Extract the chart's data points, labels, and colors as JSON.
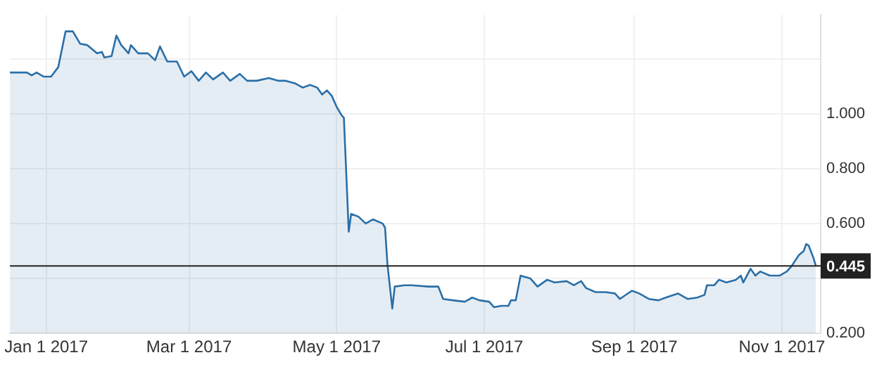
{
  "chart_data": {
    "type": "area",
    "x": [
      "2016-12-17",
      "2016-12-24",
      "2016-12-26",
      "2016-12-28",
      "2016-12-31",
      "2017-01-03",
      "2017-01-06",
      "2017-01-09",
      "2017-01-12",
      "2017-01-15",
      "2017-01-18",
      "2017-01-22",
      "2017-01-24",
      "2017-01-25",
      "2017-01-28",
      "2017-01-30",
      "2017-02-01",
      "2017-02-04",
      "2017-02-05",
      "2017-02-08",
      "2017-02-12",
      "2017-02-15",
      "2017-02-17",
      "2017-02-20",
      "2017-02-24",
      "2017-02-27",
      "2017-03-02",
      "2017-03-05",
      "2017-03-08",
      "2017-03-11",
      "2017-03-15",
      "2017-03-18",
      "2017-03-22",
      "2017-03-25",
      "2017-03-29",
      "2017-04-03",
      "2017-04-07",
      "2017-04-10",
      "2017-04-14",
      "2017-04-17",
      "2017-04-20",
      "2017-04-23",
      "2017-04-25",
      "2017-04-27",
      "2017-04-29",
      "2017-05-01",
      "2017-05-03",
      "2017-05-04",
      "2017-05-06",
      "2017-05-07",
      "2017-05-10",
      "2017-05-13",
      "2017-05-16",
      "2017-05-20",
      "2017-05-21",
      "2017-05-22",
      "2017-05-24",
      "2017-05-25",
      "2017-05-29",
      "2017-06-01",
      "2017-06-08",
      "2017-06-12",
      "2017-06-14",
      "2017-06-18",
      "2017-06-23",
      "2017-06-26",
      "2017-06-29",
      "2017-07-03",
      "2017-07-05",
      "2017-07-08",
      "2017-07-11",
      "2017-07-12",
      "2017-07-14",
      "2017-07-16",
      "2017-07-20",
      "2017-07-23",
      "2017-07-27",
      "2017-07-30",
      "2017-08-04",
      "2017-08-07",
      "2017-08-10",
      "2017-08-12",
      "2017-08-16",
      "2017-08-20",
      "2017-08-24",
      "2017-08-26",
      "2017-08-31",
      "2017-09-03",
      "2017-09-07",
      "2017-09-11",
      "2017-09-14",
      "2017-09-19",
      "2017-09-23",
      "2017-09-27",
      "2017-09-30",
      "2017-10-01",
      "2017-10-04",
      "2017-10-06",
      "2017-10-09",
      "2017-10-13",
      "2017-10-15",
      "2017-10-16",
      "2017-10-19",
      "2017-10-21",
      "2017-10-23",
      "2017-10-27",
      "2017-10-31",
      "2017-11-03",
      "2017-11-05",
      "2017-11-08",
      "2017-11-10",
      "2017-11-11",
      "2017-11-12",
      "2017-11-14",
      "2017-11-15"
    ],
    "series": [
      {
        "color": "#2a6fa8",
        "values": [
          1.15,
          1.15,
          1.14,
          1.15,
          1.135,
          1.135,
          1.17,
          1.3,
          1.3,
          1.255,
          1.25,
          1.22,
          1.225,
          1.205,
          1.21,
          1.285,
          1.25,
          1.22,
          1.25,
          1.22,
          1.22,
          1.195,
          1.245,
          1.19,
          1.19,
          1.135,
          1.155,
          1.12,
          1.15,
          1.125,
          1.15,
          1.12,
          1.145,
          1.12,
          1.12,
          1.13,
          1.12,
          1.12,
          1.11,
          1.095,
          1.105,
          1.095,
          1.07,
          1.085,
          1.065,
          1.025,
          0.995,
          0.985,
          0.57,
          0.635,
          0.625,
          0.6,
          0.615,
          0.6,
          0.585,
          0.45,
          0.29,
          0.37,
          0.375,
          0.375,
          0.37,
          0.37,
          0.325,
          0.32,
          0.315,
          0.33,
          0.32,
          0.315,
          0.295,
          0.3,
          0.3,
          0.32,
          0.32,
          0.41,
          0.4,
          0.37,
          0.395,
          0.385,
          0.39,
          0.375,
          0.39,
          0.365,
          0.35,
          0.35,
          0.345,
          0.325,
          0.355,
          0.345,
          0.325,
          0.32,
          0.33,
          0.345,
          0.325,
          0.33,
          0.34,
          0.375,
          0.375,
          0.395,
          0.385,
          0.395,
          0.41,
          0.385,
          0.435,
          0.41,
          0.425,
          0.41,
          0.41,
          0.425,
          0.445,
          0.485,
          0.5,
          0.525,
          0.52,
          0.475,
          0.445
        ]
      }
    ],
    "xlim": [
      "2016-12-17",
      "2017-11-17"
    ],
    "xticks": [
      {
        "value": "2017-01-01",
        "label": "Jan 1 2017"
      },
      {
        "value": "2017-03-01",
        "label": "Mar 1 2017"
      },
      {
        "value": "2017-05-01",
        "label": "May 1 2017"
      },
      {
        "value": "2017-07-01",
        "label": "Jul 1 2017"
      },
      {
        "value": "2017-09-01",
        "label": "Sep 1 2017"
      },
      {
        "value": "2017-11-01",
        "label": "Nov 1 2017"
      }
    ],
    "ylim": [
      0.2,
      1.36
    ],
    "yticks": [
      {
        "value": 0.2,
        "label": "0.200"
      },
      {
        "value": 0.4,
        "label": null
      },
      {
        "value": 0.6,
        "label": "0.600"
      },
      {
        "value": 0.8,
        "label": "0.800"
      },
      {
        "value": 1,
        "label": "1.000"
      },
      {
        "value": 1.2,
        "label": null
      }
    ],
    "ref_lines": [
      {
        "axis": "y",
        "value": 0.445,
        "label": "0.445",
        "color": "#222222"
      }
    ],
    "grid": true,
    "legend": false,
    "marker": "none",
    "line_style": "solid"
  }
}
